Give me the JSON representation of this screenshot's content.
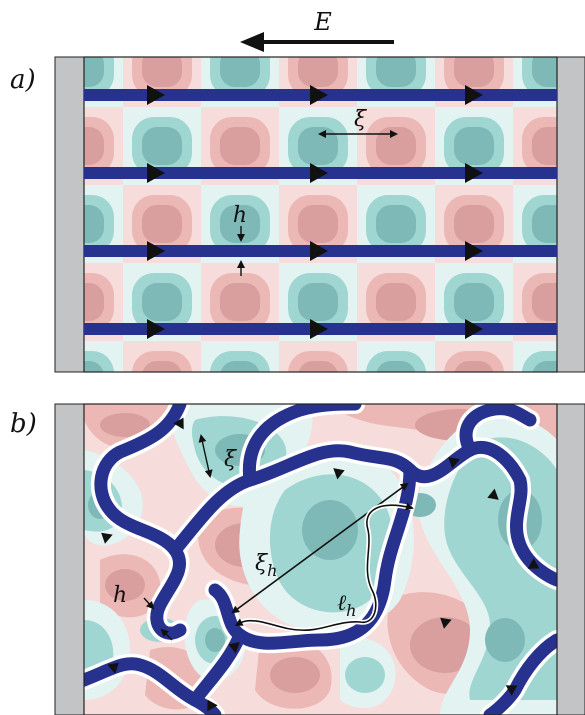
{
  "field_label": "E",
  "colors": {
    "pink_outer": "#f6dcda",
    "pink_mid": "#ebb8b6",
    "pink_core": "#d99f9f",
    "teal_outer": "#e3f3f1",
    "teal_mid": "#9fd6d2",
    "teal_core": "#7fb9b7",
    "channel": "#27318e",
    "lead": "#c3c4c6"
  },
  "panel_a": {
    "label": "a)",
    "xi_label": "ξ",
    "h_label": "h"
  },
  "panel_b": {
    "label": "b)",
    "xi_label": "ξ",
    "h_label": "h",
    "xi_h_label": "ξ",
    "xi_h_sub": "h",
    "l_h_label": "ℓ",
    "l_h_sub": "h"
  }
}
